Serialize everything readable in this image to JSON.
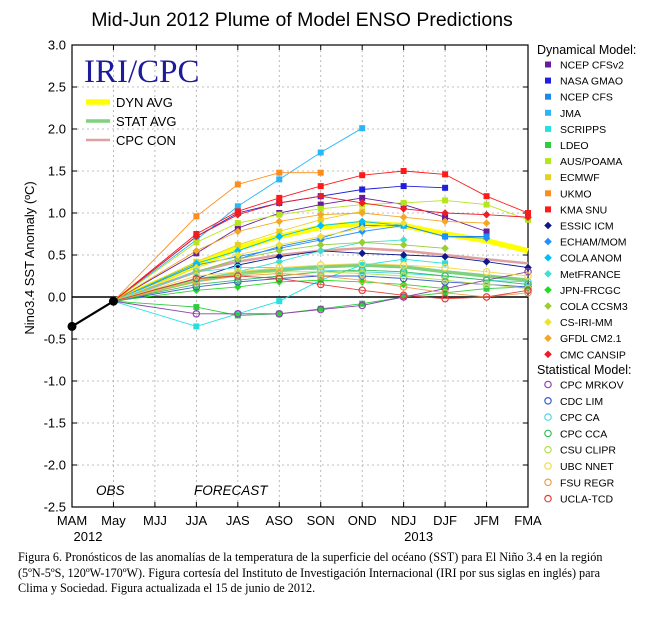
{
  "chart_data": {
    "type": "line",
    "title": "Mid-Jun 2012 Plume of Model ENSO Predictions",
    "ylabel": "Nino3.4 SST Anomaly (ºC)",
    "xlabel": "",
    "categories": [
      "MAM",
      "May",
      "MJJ",
      "JJA",
      "JAS",
      "ASO",
      "SON",
      "OND",
      "NDJ",
      "DJF",
      "JFM",
      "FMA"
    ],
    "year_labels": [
      "2012",
      "2013"
    ],
    "ylim": [
      -2.5,
      3.0
    ],
    "yticks": [
      "3.0",
      "2.5",
      "2.0",
      "1.5",
      "1.0",
      "0.5",
      "0.0",
      "-0.5",
      "-1.0",
      "-1.5",
      "-2.0",
      "-2.5"
    ],
    "grid": true,
    "annotations": {
      "obs": "OBS",
      "forecast": "FORECAST"
    },
    "logo": "IRI/CPC",
    "averages": [
      {
        "name": "DYN AVG",
        "color": "#ffff00",
        "values": [
          null,
          -0.05,
          null,
          0.38,
          0.58,
          0.72,
          0.83,
          0.88,
          0.85,
          0.75,
          0.67,
          0.55
        ]
      },
      {
        "name": "STAT AVG",
        "color": "#7fd07f",
        "values": [
          null,
          -0.05,
          null,
          0.2,
          0.28,
          0.32,
          0.36,
          0.38,
          0.36,
          0.3,
          0.25,
          0.2
        ]
      },
      {
        "name": "CPC CON",
        "color": "#e0a0a0",
        "values": [
          null,
          -0.05,
          null,
          0.3,
          0.42,
          0.5,
          0.55,
          0.58,
          0.55,
          0.5,
          0.45,
          0.4
        ]
      }
    ],
    "obs": {
      "name": "OBS",
      "color": "#000000",
      "values": [
        -0.35,
        -0.05
      ]
    },
    "legend_dynamical_title": "Dynamical Model:",
    "legend_statistical_title": "Statistical Model:",
    "series": [
      {
        "name": "NCEP CFSv2",
        "group": "dyn",
        "color": "#6a1b9a",
        "values": [
          null,
          -0.05,
          null,
          0.52,
          0.82,
          1.0,
          1.1,
          1.18,
          1.1,
          0.95,
          0.78,
          null
        ]
      },
      {
        "name": "NASA GMAO",
        "group": "dyn",
        "color": "#1f1fdc",
        "values": [
          null,
          -0.05,
          null,
          0.72,
          1.0,
          1.12,
          1.2,
          1.28,
          1.32,
          1.3,
          null,
          null
        ]
      },
      {
        "name": "NCEP CFS",
        "group": "dyn",
        "color": "#1e88e5",
        "values": [
          null,
          -0.05,
          null,
          0.3,
          0.45,
          0.6,
          0.7,
          0.85,
          0.85,
          0.72,
          0.72,
          null
        ]
      },
      {
        "name": "JMA",
        "group": "dyn",
        "color": "#29b6f6",
        "values": [
          null,
          -0.05,
          null,
          0.68,
          1.08,
          1.4,
          1.72,
          2.01,
          null,
          null,
          null,
          null
        ]
      },
      {
        "name": "SCRIPPS",
        "group": "dyn",
        "color": "#26e0e0",
        "values": [
          null,
          -0.05,
          null,
          -0.35,
          -0.2,
          -0.05,
          0.2,
          0.38,
          0.45,
          0.4,
          null,
          null
        ]
      },
      {
        "name": "LDEO",
        "group": "dyn",
        "color": "#2ecc40",
        "values": [
          null,
          -0.05,
          null,
          -0.12,
          -0.22,
          -0.2,
          -0.14,
          -0.08,
          0.0,
          0.05,
          0.1,
          0.12
        ]
      },
      {
        "name": "AUS/POAMA",
        "group": "dyn",
        "color": "#b5e61d",
        "values": [
          null,
          -0.05,
          null,
          0.65,
          0.88,
          0.98,
          1.05,
          1.1,
          1.12,
          1.15,
          1.1,
          0.92
        ]
      },
      {
        "name": "ECMWF",
        "group": "dyn",
        "color": "#e6d21a",
        "values": [
          null,
          -0.05,
          null,
          0.42,
          0.62,
          0.78,
          0.92,
          1.02,
          null,
          null,
          null,
          null
        ]
      },
      {
        "name": "UKMO",
        "group": "dyn",
        "color": "#ff8c1a",
        "values": [
          null,
          -0.05,
          null,
          0.96,
          1.34,
          1.48,
          1.48,
          null,
          null,
          null,
          null,
          null
        ]
      },
      {
        "name": "KMA SNU",
        "group": "dyn",
        "color": "#ff1a1a",
        "values": [
          null,
          -0.05,
          null,
          0.75,
          1.02,
          1.18,
          1.32,
          1.45,
          1.5,
          1.46,
          1.2,
          1.0
        ]
      },
      {
        "name": "ESSIC ICM",
        "group": "dyn",
        "color": "#0d1a8c",
        "values": [
          null,
          -0.05,
          null,
          0.22,
          0.38,
          0.48,
          0.55,
          0.52,
          0.5,
          0.48,
          0.42,
          0.35
        ]
      },
      {
        "name": "ECHAM/MOM",
        "group": "dyn",
        "color": "#1e90ff",
        "values": [
          null,
          -0.05,
          null,
          0.38,
          0.48,
          0.58,
          0.68,
          0.78,
          0.85,
          0.72,
          0.7,
          null
        ]
      },
      {
        "name": "COLA ANOM",
        "group": "dyn",
        "color": "#00bfff",
        "values": [
          null,
          -0.05,
          null,
          0.4,
          0.55,
          0.72,
          0.85,
          0.9,
          0.85,
          null,
          null,
          null
        ]
      },
      {
        "name": "MetFRANCE",
        "group": "dyn",
        "color": "#40e0d0",
        "values": [
          null,
          -0.05,
          null,
          0.18,
          0.3,
          0.42,
          0.55,
          0.65,
          0.68,
          null,
          null,
          null
        ]
      },
      {
        "name": "JPN-FRCGC",
        "group": "dyn",
        "color": "#22dd22",
        "values": [
          null,
          -0.05,
          null,
          0.08,
          0.12,
          0.18,
          0.2,
          0.18,
          0.15,
          0.1,
          null,
          null
        ]
      },
      {
        "name": "COLA CCSM3",
        "group": "dyn",
        "color": "#9acd32",
        "values": [
          null,
          -0.05,
          null,
          0.3,
          0.45,
          0.55,
          0.62,
          0.65,
          0.62,
          0.58,
          null,
          null
        ]
      },
      {
        "name": "CS-IRI-MM",
        "group": "dyn",
        "color": "#f0e030",
        "values": [
          null,
          -0.05,
          null,
          0.35,
          0.5,
          0.62,
          0.72,
          0.82,
          0.88,
          null,
          null,
          null
        ]
      },
      {
        "name": "GFDL CM2.1",
        "group": "dyn",
        "color": "#f5a623",
        "values": [
          null,
          -0.05,
          null,
          0.55,
          0.78,
          0.9,
          0.98,
          1.0,
          0.95,
          0.9,
          0.88,
          null
        ]
      },
      {
        "name": "CMC CANSIP",
        "group": "dyn",
        "color": "#ee1c25",
        "values": [
          null,
          -0.05,
          null,
          0.72,
          0.98,
          1.12,
          1.2,
          1.12,
          1.05,
          1.0,
          0.98,
          0.95
        ]
      },
      {
        "name": "CPC MRKOV",
        "group": "stat",
        "color": "#8e44ad",
        "values": [
          null,
          -0.05,
          null,
          -0.2,
          -0.2,
          -0.2,
          -0.15,
          -0.1,
          0.0,
          0.1,
          0.2,
          0.3
        ]
      },
      {
        "name": "CDC LIM",
        "group": "stat",
        "color": "#3a5fcd",
        "values": [
          null,
          -0.05,
          null,
          0.12,
          0.18,
          0.22,
          0.25,
          0.25,
          0.22,
          0.18,
          0.15,
          0.12
        ]
      },
      {
        "name": "CPC CA",
        "group": "stat",
        "color": "#4fd8e8",
        "values": [
          null,
          -0.05,
          null,
          0.3,
          0.35,
          0.35,
          0.32,
          0.3,
          0.28,
          0.25,
          0.2,
          0.18
        ]
      },
      {
        "name": "CPC CCA",
        "group": "stat",
        "color": "#36c060",
        "values": [
          null,
          -0.05,
          null,
          0.15,
          0.2,
          0.25,
          0.3,
          0.32,
          0.3,
          0.25,
          0.2,
          0.15
        ]
      },
      {
        "name": "CSU CLIPR",
        "group": "stat",
        "color": "#b8e04a",
        "values": [
          null,
          -0.05,
          null,
          0.2,
          0.28,
          0.3,
          0.3,
          0.28,
          0.25,
          0.2,
          0.15,
          0.1
        ]
      },
      {
        "name": "UBC NNET",
        "group": "stat",
        "color": "#f2d94e",
        "values": [
          null,
          -0.05,
          null,
          0.25,
          0.3,
          0.35,
          0.38,
          0.4,
          0.38,
          0.35,
          0.3,
          0.25
        ]
      },
      {
        "name": "FSU REGR",
        "group": "stat",
        "color": "#f0a050",
        "values": [
          null,
          -0.05,
          null,
          0.18,
          0.25,
          0.28,
          0.25,
          0.2,
          0.12,
          0.05,
          0.0,
          0.05
        ]
      },
      {
        "name": "UCLA-TCD",
        "group": "stat",
        "color": "#e04040",
        "values": [
          null,
          -0.05,
          null,
          0.22,
          0.25,
          0.22,
          0.15,
          0.08,
          0.02,
          -0.02,
          0.0,
          0.08
        ]
      }
    ]
  },
  "caption": "Figura 6.  Pronósticos de las anomalías de la temperatura de la superficie del océano (SST) para El Niño 3.4 en la región (5ºN-5ºS, 120ºW-170ºW).  Figura cortesía del Instituto de Investigación Internacional (IRI por sus siglas en inglés) para Clima y Sociedad. Figura actualizada el 15 de junio  de 2012."
}
